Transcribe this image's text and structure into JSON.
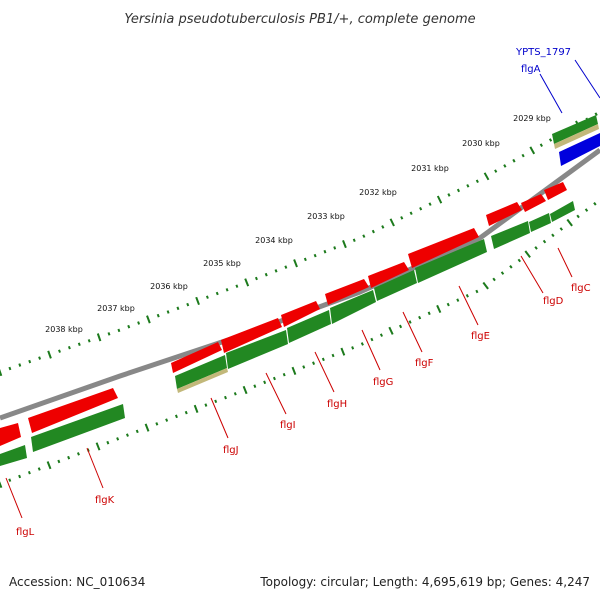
{
  "map": {
    "title": "Yersinia pseudotuberculosis PB1/+, complete genome",
    "accession_text": "Accession: NC_010634",
    "topology_text": "Topology: circular; Length: 4,695,619 bp; Genes: 4,247",
    "colors": {
      "backbone": "#888888",
      "forward_gene": "#ee0000",
      "cds": "#228822",
      "blue_gene": "#0000dd",
      "tick": "#1c7a1c",
      "label_red": "#cc0000",
      "label_blue": "#0000cc"
    },
    "kbp_labels": [
      "2029 kbp",
      "2030 kbp",
      "2031 kbp",
      "2032 kbp",
      "2033 kbp",
      "2034 kbp",
      "2035 kbp",
      "2036 kbp",
      "2037 kbp",
      "2038 kbp"
    ],
    "genes": [
      {
        "name": "YPTS_1797",
        "color": "blue"
      },
      {
        "name": "flgA",
        "color": "blue"
      },
      {
        "name": "flgC",
        "color": "red"
      },
      {
        "name": "flgD",
        "color": "red"
      },
      {
        "name": "flgE",
        "color": "red"
      },
      {
        "name": "flgF",
        "color": "red"
      },
      {
        "name": "flgG",
        "color": "red"
      },
      {
        "name": "flgH",
        "color": "red"
      },
      {
        "name": "flgI",
        "color": "red"
      },
      {
        "name": "flgJ",
        "color": "red"
      },
      {
        "name": "flgK",
        "color": "red"
      },
      {
        "name": "flgL",
        "color": "red"
      }
    ]
  }
}
